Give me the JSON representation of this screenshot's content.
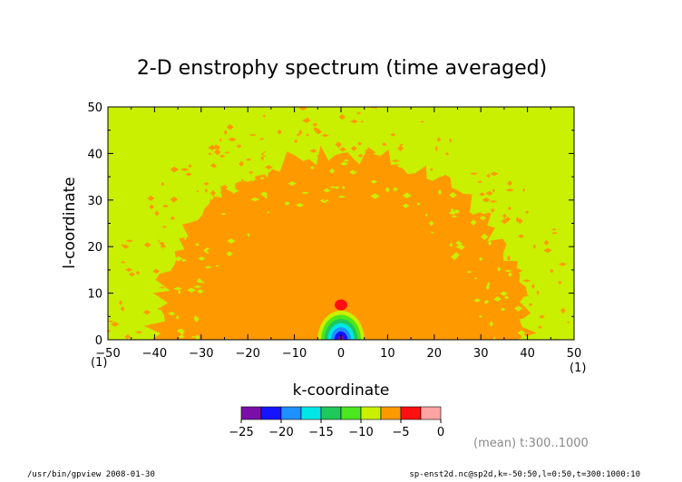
{
  "chart_data": {
    "type": "heatmap",
    "title": "2-D enstrophy spectrum (time averaged)",
    "xlabel": "k-coordinate",
    "ylabel": "l-coordinate",
    "xlim": [
      -50,
      50
    ],
    "ylim": [
      0,
      50
    ],
    "x_ticks": [
      -50,
      -40,
      -30,
      -20,
      -10,
      0,
      10,
      20,
      30,
      40,
      50
    ],
    "y_ticks": [
      0,
      10,
      20,
      30,
      40,
      50
    ],
    "x_unit": "(1)",
    "y_unit": "(1)",
    "grid": false,
    "contour_levels": [
      -25,
      -22.5,
      -20,
      -17.5,
      -15,
      -12.5,
      -10,
      -7.5,
      -5,
      -2.5,
      0
    ],
    "colorbar_ticks": [
      -25,
      -20,
      -15,
      -10,
      -5,
      0
    ],
    "colorbar_colors": [
      "#7a0fa8",
      "#1414ff",
      "#1e90ff",
      "#00e6e6",
      "#1ec85a",
      "#4be61e",
      "#c8f000",
      "#ff9900",
      "#ff1010",
      "#ffa3a3"
    ],
    "regions": [
      {
        "name": "outer",
        "level_bin": 6,
        "description_value": "-10..-7.5"
      },
      {
        "name": "inner-disk",
        "level_bin": 7,
        "radius_k": 40,
        "radius_l": 40
      },
      {
        "name": "peak",
        "level_bin": 8,
        "k": 0,
        "l": 7.5
      },
      {
        "name": "origin-core",
        "level_bins": [
          0,
          1,
          2,
          3,
          4,
          5,
          6
        ],
        "k": 0,
        "l": 0,
        "radius": 5
      }
    ]
  },
  "annotation": "(mean) t:300..1000",
  "footer": {
    "left": "/usr/bin/gpview  2008-01-30",
    "right": "sp-enst2d.nc@sp2d,k=-50:50,l=0:50,t=300:1000:10"
  }
}
